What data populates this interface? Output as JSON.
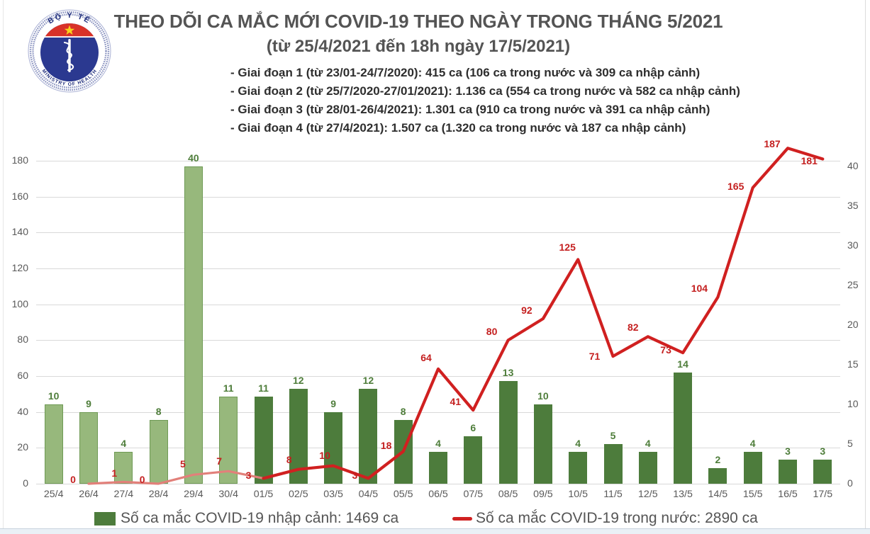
{
  "header": {
    "title": "THEO DÕI CA MẮC MỚI COVID-19 THEO NGÀY TRONG THÁNG 5/2021",
    "subtitle": "(từ 25/4/2021 đến 18h ngày 17/5/2021)",
    "phases": [
      "- Giai đoạn 1 (từ 23/01-24/7/2020): 415 ca (106 ca trong nước và 309 ca nhập cảnh)",
      "- Giai đoạn 2 (từ 25/7/2020-27/01/2021): 1.136 ca (554 ca trong nước và 582 ca nhập cảnh)",
      "- Giai đoạn 3 (từ 28/01-26/4/2021): 1.301 ca (910 ca trong nước và 391 ca nhập cảnh)",
      "- Giai đoạn 4 (từ 27/4/2021): 1.507 ca (1.320 ca trong nước và 187 ca nhập cảnh)"
    ]
  },
  "logo": {
    "text_top": "BỘ Y TẾ",
    "text_bottom": "MINISTRY OF HEALTH",
    "colors": {
      "red": "#d93228",
      "blue": "#2b3990",
      "star": "#f8d21c",
      "ring": "#8a93c0"
    }
  },
  "chart_data": {
    "type": "bar+line dual-axis",
    "categories": [
      "25/4",
      "26/4",
      "27/4",
      "28/4",
      "29/4",
      "30/4",
      "01/5",
      "02/5",
      "03/5",
      "04/5",
      "05/5",
      "06/5",
      "07/5",
      "08/5",
      "09/5",
      "10/5",
      "11/5",
      "12/5",
      "13/5",
      "14/5",
      "15/5",
      "16/5",
      "17/5"
    ],
    "series": [
      {
        "name": "Số ca mắc COVID-19 nhập cảnh",
        "type": "bar",
        "axis": "right",
        "values": [
          10,
          9,
          4,
          8,
          40,
          11,
          11,
          12,
          9,
          12,
          8,
          4,
          6,
          13,
          10,
          4,
          5,
          4,
          14,
          2,
          4,
          3,
          3
        ]
      },
      {
        "name": "Số ca mắc COVID-19 trong nước",
        "type": "line",
        "axis": "left",
        "values": [
          null,
          0,
          1,
          0,
          5,
          7,
          3,
          8,
          10,
          3,
          18,
          64,
          41,
          80,
          92,
          125,
          71,
          82,
          73,
          104,
          165,
          187,
          181
        ]
      }
    ],
    "left_axis": {
      "ticks": [
        0,
        20,
        40,
        60,
        80,
        100,
        120,
        140,
        160,
        180
      ],
      "range": [
        0,
        188.7
      ]
    },
    "right_axis": {
      "ticks": [
        0,
        5,
        10,
        15,
        20,
        25,
        30,
        35,
        40
      ],
      "range": [
        0,
        42.7
      ]
    },
    "light_bar_indices": [
      0,
      1,
      2,
      3,
      4,
      5
    ],
    "grid": true,
    "legend_position": "bottom",
    "colors": {
      "bar_light": "#97b87c",
      "bar_light_border": "#6f9a55",
      "bar_dark": "#4d7c3c",
      "bar_label": "#4e7d3a",
      "line_april": "#e2807a",
      "line": "#d02020",
      "line_label": "#c41f1f",
      "grid": "#d9d9d9",
      "axis_text": "#595959"
    }
  },
  "legend": [
    {
      "swatch": "bar",
      "label": "Số ca mắc COVID-19 nhập cảnh: 1469 ca"
    },
    {
      "swatch": "line",
      "label": "Số ca mắc COVID-19 trong nước: 2890 ca"
    }
  ]
}
